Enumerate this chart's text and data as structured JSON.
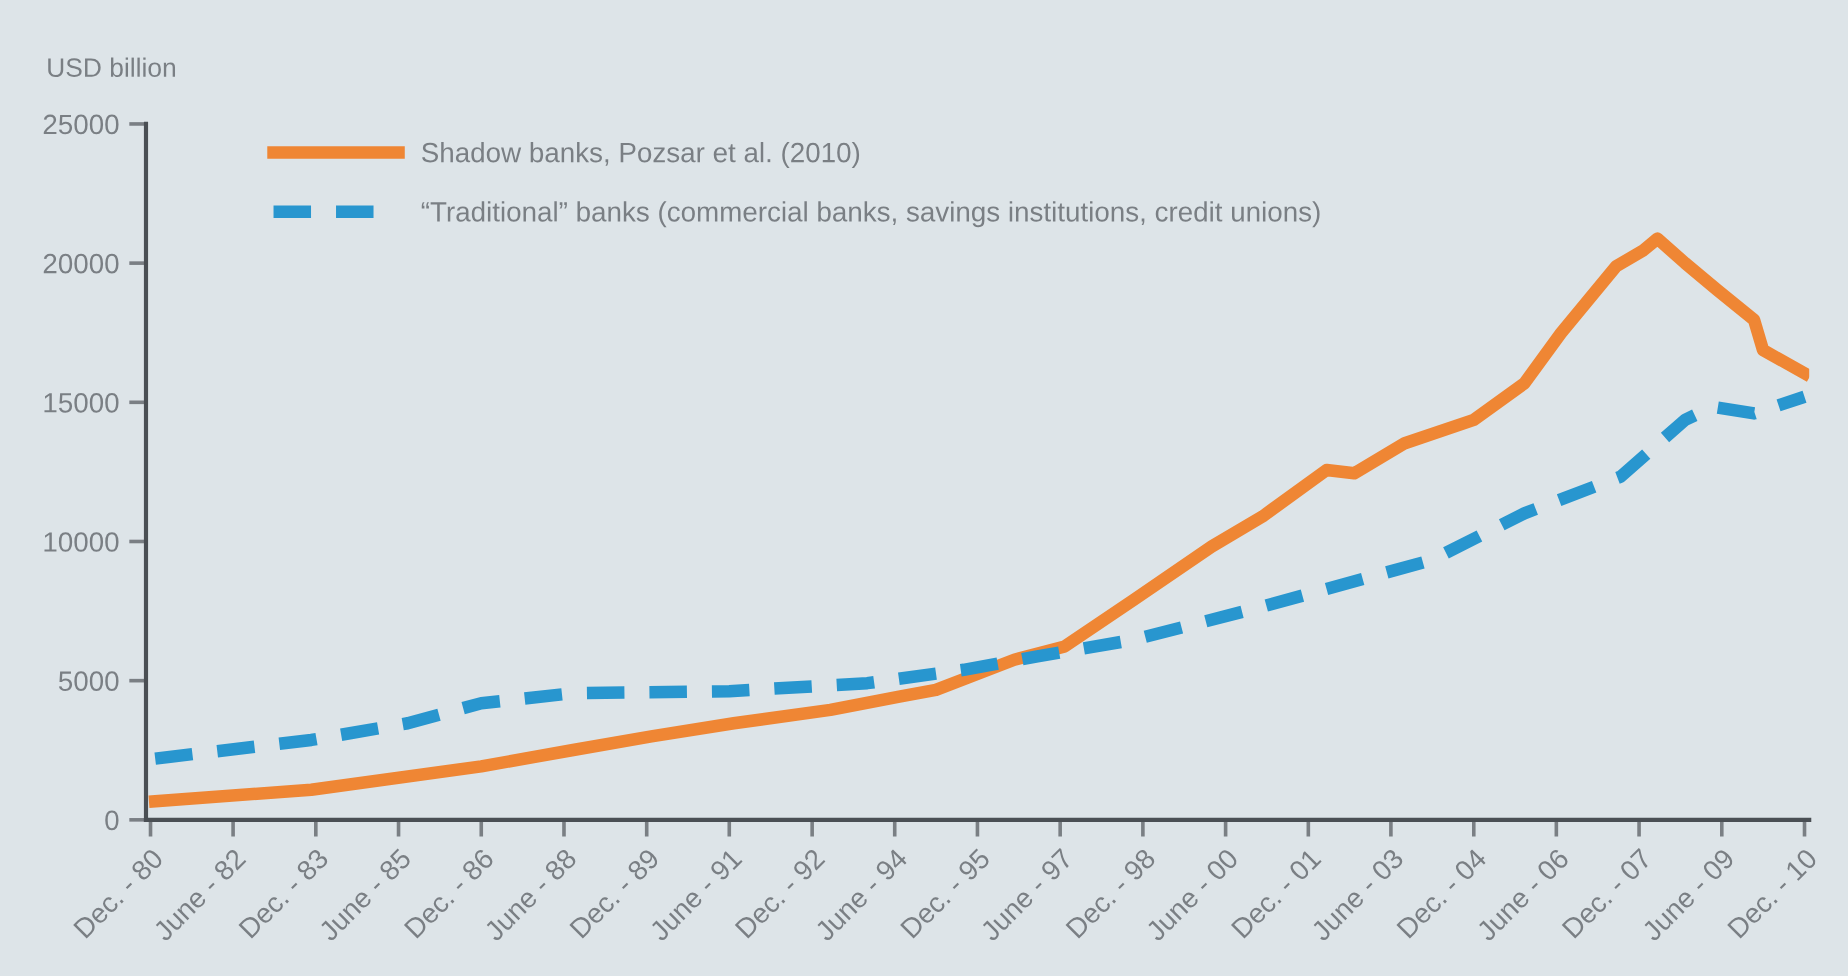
{
  "chart_data": {
    "type": "line",
    "ylabel": "USD billion",
    "x": [
      "1981-01",
      "1983-11",
      "1986-12",
      "1988-08",
      "1990-01",
      "1991-07",
      "1993-04",
      "1994-07",
      "1995-03",
      "1996-08",
      "1997-07",
      "1998-10",
      "2000-03",
      "2001-02",
      "2002-04",
      "2002-10",
      "2003-09",
      "2004-12",
      "2005-11",
      "2006-07",
      "2007-07",
      "2008-01",
      "2008-04",
      "2008-10",
      "2009-05",
      "2010-01",
      "2010-03",
      "2010-12"
    ],
    "series": [
      {
        "name": "Shadow banks, Pozsar et al. (2010)",
        "color": "#ef8634",
        "line_style": "solid",
        "values": [
          670,
          1080,
          1920,
          2510,
          3000,
          3470,
          3950,
          4430,
          4670,
          5750,
          6230,
          7900,
          9820,
          10900,
          12570,
          12450,
          13530,
          14370,
          15680,
          17480,
          19880,
          20470,
          20880,
          20000,
          19040,
          17960,
          16880,
          16040
        ]
      },
      {
        "name": "“Traditional” banks (commercial banks, savings institutions, credit unions)",
        "color": "#2896cf",
        "line_style": "dashed",
        "x": [
          "1981-01",
          "1983-11",
          "1985-08",
          "1986-12",
          "1988-08",
          "1991-06",
          "1993-12",
          "1995-09",
          "1997-01",
          "1998-10",
          "2001-02",
          "2004-03",
          "2005-11",
          "2007-08",
          "2008-10",
          "2009-04",
          "2010-01",
          "2010-12"
        ],
        "values": [
          2200,
          2870,
          3470,
          4190,
          4550,
          4620,
          4910,
          5390,
          5870,
          6470,
          7660,
          9340,
          11010,
          12330,
          14370,
          14840,
          14600,
          15200
        ]
      }
    ],
    "xlim": [
      "1980-11",
      "2011-01"
    ],
    "xticks": [
      {
        "value": "1980-12",
        "label": "Dec. - 80"
      },
      {
        "value": "1982-06",
        "label": "June - 82"
      },
      {
        "value": "1983-12",
        "label": "Dec. - 83"
      },
      {
        "value": "1985-06",
        "label": "June - 85"
      },
      {
        "value": "1986-12",
        "label": "Dec. - 86"
      },
      {
        "value": "1988-06",
        "label": "June - 88"
      },
      {
        "value": "1989-12",
        "label": "Dec. - 89"
      },
      {
        "value": "1991-06",
        "label": "June - 91"
      },
      {
        "value": "1992-12",
        "label": "Dec. - 92"
      },
      {
        "value": "1994-06",
        "label": "June - 94"
      },
      {
        "value": "1995-12",
        "label": "Dec. - 95"
      },
      {
        "value": "1997-06",
        "label": "June - 97"
      },
      {
        "value": "1998-12",
        "label": "Dec. - 98"
      },
      {
        "value": "2000-06",
        "label": "June - 00"
      },
      {
        "value": "2001-12",
        "label": "Dec. - 01"
      },
      {
        "value": "2003-06",
        "label": "June - 03"
      },
      {
        "value": "2004-12",
        "label": "Dec. - 04"
      },
      {
        "value": "2006-06",
        "label": "June - 06"
      },
      {
        "value": "2007-12",
        "label": "Dec. - 07"
      },
      {
        "value": "2009-06",
        "label": "June - 09"
      },
      {
        "value": "2010-12",
        "label": "Dec. - 10"
      }
    ],
    "ylim": [
      0,
      25000
    ],
    "yticks": [
      0,
      5000,
      10000,
      15000,
      20000,
      25000
    ],
    "grid": false,
    "legend": "top left",
    "marker": "none"
  }
}
